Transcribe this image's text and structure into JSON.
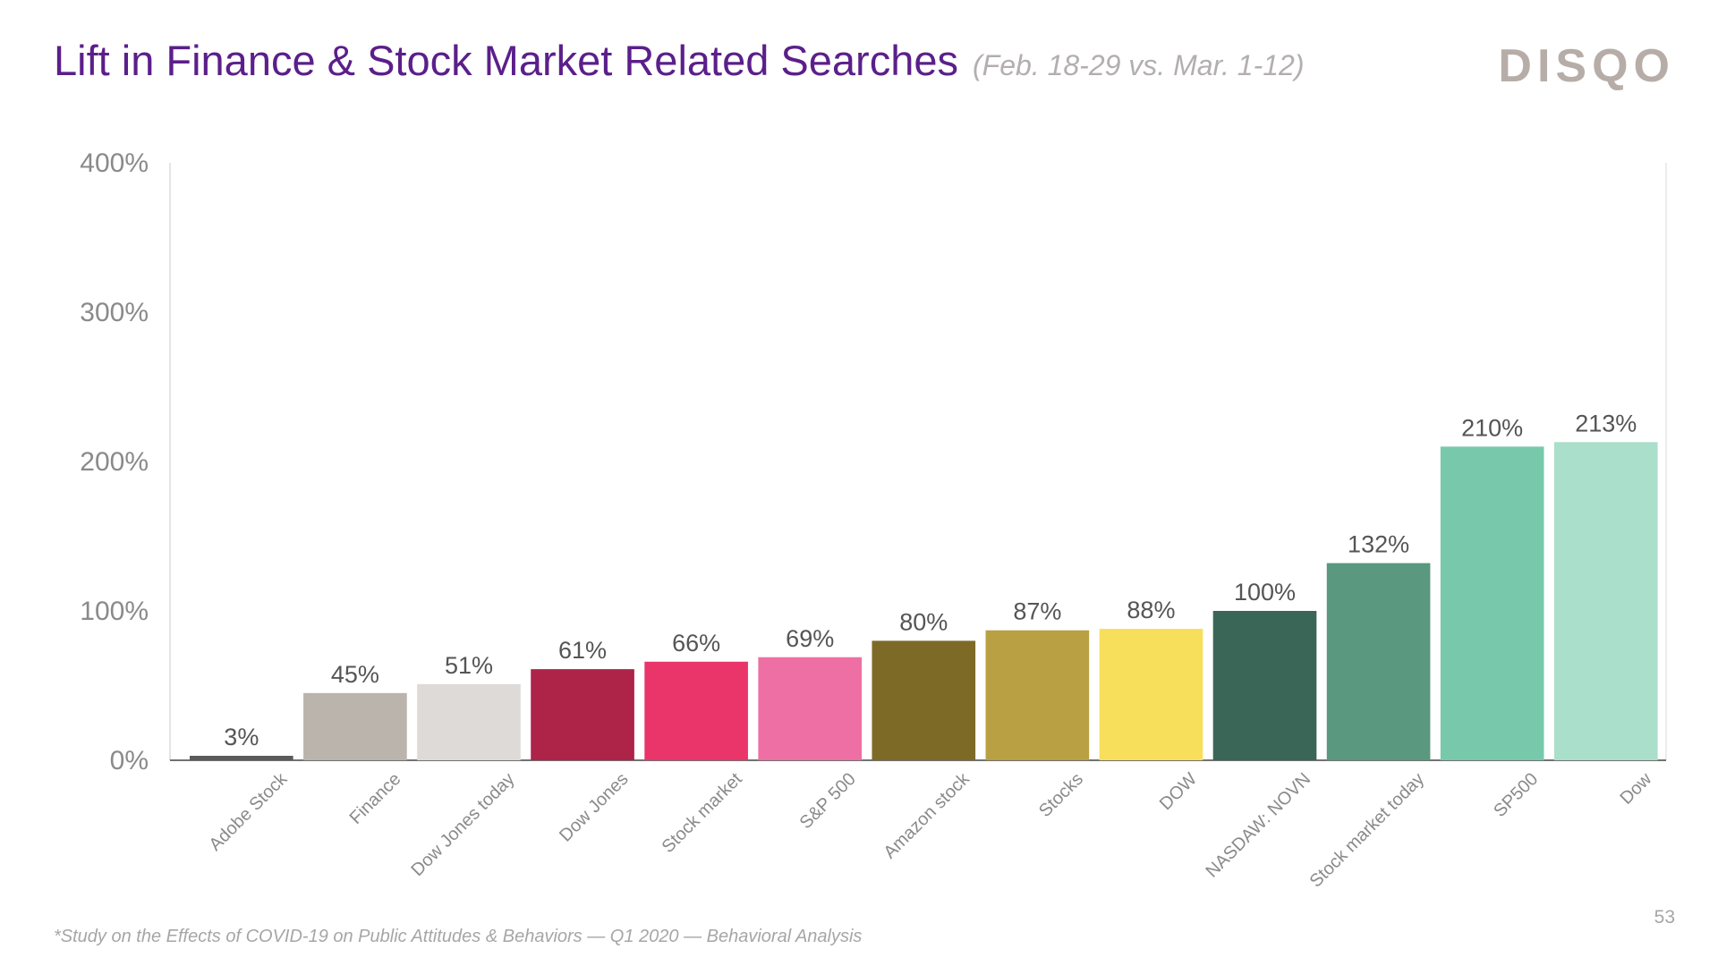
{
  "header": {
    "title": "Lift in Finance & Stock Market Related Searches",
    "subtitle": "(Feb. 18-29 vs. Mar. 1-12)",
    "logo_text": "DISQO"
  },
  "footer": {
    "footnote": "*Study on the Effects of COVID-19 on Public Attitudes & Behaviors — Q1 2020 — Behavioral Analysis",
    "page_number": "53"
  },
  "chart_data": {
    "type": "bar",
    "title": "",
    "xlabel": "",
    "ylabel": "",
    "ylim": [
      0,
      400
    ],
    "yticks": [
      0,
      100,
      200,
      300,
      400
    ],
    "ytick_labels": [
      "0%",
      "100%",
      "200%",
      "300%",
      "400%"
    ],
    "grid": false,
    "legend": "none",
    "categories": [
      "Adobe Stock",
      "Finance",
      "Dow Jones today",
      "Dow Jones",
      "Stock market",
      "S&P 500",
      "Amazon stock",
      "Stocks",
      "DOW",
      "NASDAW: NOVN",
      "Stock market today",
      "SP500",
      "Dow"
    ],
    "values": [
      3,
      45,
      51,
      61,
      66,
      69,
      80,
      87,
      88,
      100,
      132,
      210,
      213
    ],
    "value_labels": [
      "3%",
      "45%",
      "51%",
      "61%",
      "66%",
      "69%",
      "80%",
      "87%",
      "88%",
      "100%",
      "132%",
      "210%",
      "213%"
    ],
    "colors": [
      "#5a5a5a",
      "#bab4ad",
      "#dedad7",
      "#ae2348",
      "#e9356a",
      "#ee6fa3",
      "#7e6a27",
      "#b9a042",
      "#f7df5c",
      "#3a6657",
      "#5b9880",
      "#78c9ab",
      "#a9dfcb"
    ]
  }
}
